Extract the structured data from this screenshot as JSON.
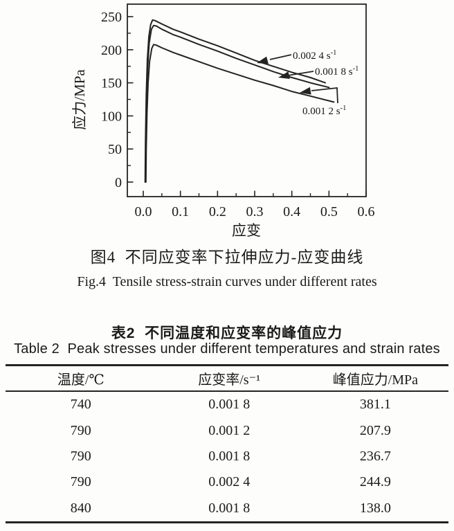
{
  "page": {
    "background": "#fdfdfc",
    "ink": "#1a1a1a"
  },
  "figure": {
    "caption_zh": "图4  不同应变率下拉伸应力-应变曲线",
    "caption_en": "Fig.4  Tensile stress-strain curves under different rates"
  },
  "chart_data": {
    "type": "line",
    "title": "",
    "xlabel": "应变",
    "ylabel": "应力/MPa",
    "xlim": [
      -0.05,
      0.6
    ],
    "ylim": [
      -22,
      270
    ],
    "grid": false,
    "legend_position": "inline-annotations",
    "x_ticks": [
      "0.0",
      "0.1",
      "0.2",
      "0.3",
      "0.4",
      "0.5",
      "0.6"
    ],
    "y_ticks": [
      0,
      50,
      100,
      150,
      200,
      250
    ],
    "series": [
      {
        "name": "0.002 4 s⁻¹",
        "peak_stress_mpa": 244.9,
        "points": [
          [
            0.005,
            0
          ],
          [
            0.006,
            60
          ],
          [
            0.008,
            130
          ],
          [
            0.011,
            185
          ],
          [
            0.015,
            220
          ],
          [
            0.02,
            238
          ],
          [
            0.025,
            244.9
          ],
          [
            0.032,
            244
          ],
          [
            0.05,
            239
          ],
          [
            0.08,
            231
          ],
          [
            0.1,
            227
          ],
          [
            0.15,
            216
          ],
          [
            0.2,
            206
          ],
          [
            0.25,
            195
          ],
          [
            0.3,
            184
          ],
          [
            0.35,
            175
          ],
          [
            0.4,
            166
          ],
          [
            0.45,
            158
          ],
          [
            0.49,
            150
          ]
        ]
      },
      {
        "name": "0.001 8 s⁻¹",
        "peak_stress_mpa": 236.7,
        "points": [
          [
            0.006,
            0
          ],
          [
            0.007,
            55
          ],
          [
            0.009,
            120
          ],
          [
            0.012,
            175
          ],
          [
            0.016,
            210
          ],
          [
            0.022,
            231
          ],
          [
            0.028,
            236.7
          ],
          [
            0.035,
            236
          ],
          [
            0.05,
            231
          ],
          [
            0.08,
            223
          ],
          [
            0.1,
            219
          ],
          [
            0.15,
            208
          ],
          [
            0.2,
            198
          ],
          [
            0.25,
            187
          ],
          [
            0.3,
            177
          ],
          [
            0.35,
            167
          ],
          [
            0.4,
            158
          ],
          [
            0.45,
            150
          ],
          [
            0.5,
            143
          ]
        ]
      },
      {
        "name": "0.001 2 s⁻¹",
        "peak_stress_mpa": 207.9,
        "points": [
          [
            0.007,
            0
          ],
          [
            0.008,
            50
          ],
          [
            0.01,
            105
          ],
          [
            0.013,
            150
          ],
          [
            0.017,
            182
          ],
          [
            0.023,
            202
          ],
          [
            0.028,
            207.9
          ],
          [
            0.035,
            207
          ],
          [
            0.05,
            203
          ],
          [
            0.08,
            196
          ],
          [
            0.1,
            192
          ],
          [
            0.15,
            182
          ],
          [
            0.2,
            172
          ],
          [
            0.25,
            163
          ],
          [
            0.3,
            154
          ],
          [
            0.35,
            146
          ],
          [
            0.4,
            137
          ],
          [
            0.45,
            130
          ],
          [
            0.513,
            121
          ]
        ]
      }
    ],
    "annotations": [
      {
        "label": "0.002 4 s⁻¹",
        "label_xy": [
          423,
          80
        ],
        "line": [
          [
            421,
            79
          ],
          [
            390,
            86
          ]
        ],
        "tip": [
          371,
          91
        ]
      },
      {
        "label": "0.001 8 s⁻¹",
        "label_xy": [
          455,
          103
        ],
        "line": [
          [
            453,
            103
          ],
          [
            416,
            109
          ]
        ],
        "tip": [
          402,
          112
        ]
      },
      {
        "label": "0.001 2 s⁻¹",
        "label_xy": [
          437,
          160
        ],
        "line": [
          [
            488,
            149
          ],
          [
            487,
            127
          ],
          [
            450,
            131
          ]
        ],
        "tip": [
          433,
          134
        ]
      }
    ]
  },
  "table": {
    "caption_zh": "表2  不同温度和应变率的峰值应力",
    "caption_en": "Table 2  Peak stresses under different temperatures and strain rates",
    "headers": [
      "温度/℃",
      "应变率/s⁻¹",
      "峰值应力/MPa"
    ],
    "rows": [
      [
        "740",
        "0.001 8",
        "381.1"
      ],
      [
        "790",
        "0.001 2",
        "207.9"
      ],
      [
        "790",
        "0.001 8",
        "236.7"
      ],
      [
        "790",
        "0.002 4",
        "244.9"
      ],
      [
        "840",
        "0.001 8",
        "138.0"
      ]
    ]
  }
}
